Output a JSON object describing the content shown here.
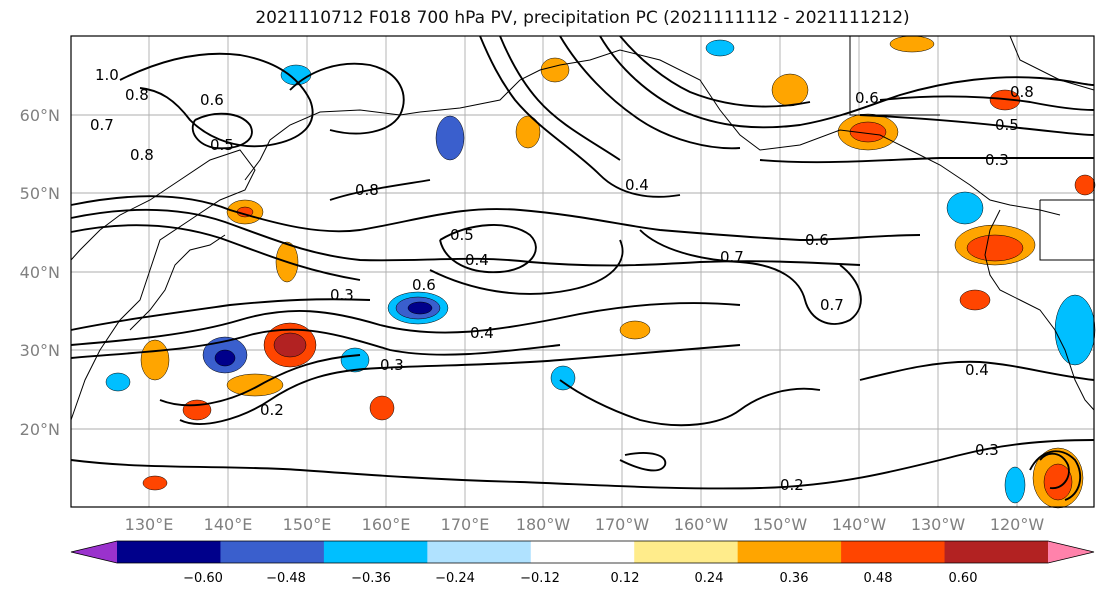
{
  "title": "2021110712 F018 700 hPa PV, precipitation PC (2021111112 - 2021111212)",
  "lat_labels": [
    "60°N",
    "50°N",
    "40°N",
    "30°N",
    "20°N"
  ],
  "lon_labels": [
    "130°E",
    "140°E",
    "150°E",
    "160°E",
    "170°E",
    "180°W",
    "170°W",
    "160°W",
    "150°W",
    "140°W",
    "130°W",
    "120°W"
  ],
  "colorbar": {
    "colors": [
      "#9a32cd",
      "#00008b",
      "#3a5fcd",
      "#00bfff",
      "#b0e2ff",
      "#ffffff",
      "#ffec8b",
      "#ffa500",
      "#ff4500",
      "#b22222",
      "#ff82ab"
    ],
    "ticks": [
      "−0.60",
      "−0.48",
      "−0.36",
      "−0.24",
      "−0.12",
      "0.12",
      "0.24",
      "0.36",
      "0.48",
      "0.60"
    ]
  },
  "contour_labels": [
    "1.0",
    "0.8",
    "0.7",
    "0.6",
    "0.5",
    "0.4",
    "0.3",
    "0.2"
  ]
}
